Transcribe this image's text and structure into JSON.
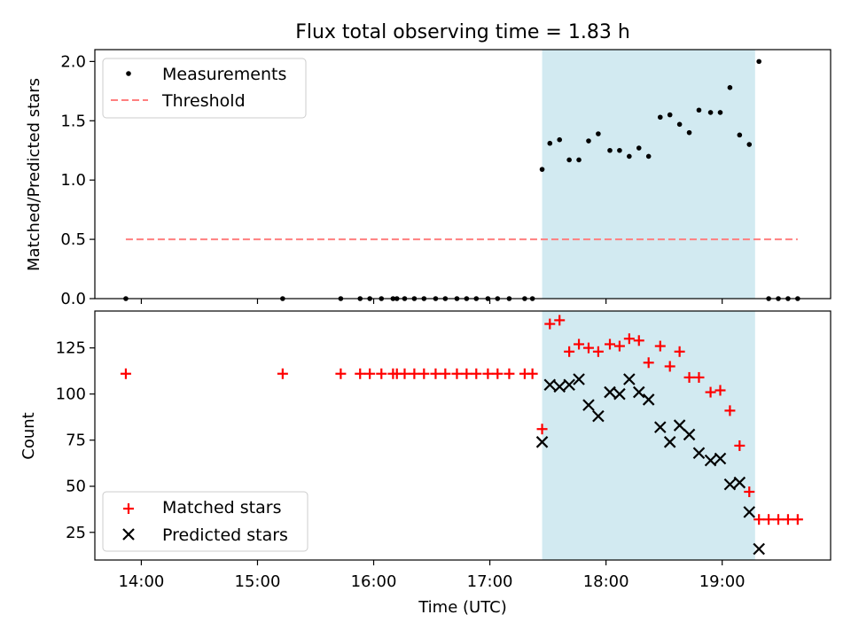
{
  "chart_data": {
    "type": "scatter",
    "title": "Flux total observing time = 1.83 h",
    "xlabel": "Time (UTC)",
    "x_ticks": [
      "14:00",
      "15:00",
      "16:00",
      "17:00",
      "18:00",
      "19:00"
    ],
    "shaded_interval": [
      "17:27",
      "19:17"
    ],
    "shade_color": "#add8e6",
    "panels": [
      {
        "ylabel": "Matched/Predicted stars",
        "ylim": [
          0,
          2.1
        ],
        "y_ticks": [
          "0.0",
          "0.5",
          "1.0",
          "1.5",
          "2.0"
        ],
        "legend": "top-left",
        "series": [
          {
            "name": "Measurements",
            "marker": "dot",
            "color": "#000000",
            "x": [
              "13:52",
              "15:13",
              "15:43",
              "15:53",
              "15:58",
              "16:04",
              "16:10",
              "16:12",
              "16:16",
              "16:21",
              "16:26",
              "16:32",
              "16:37",
              "16:43",
              "16:48",
              "16:53",
              "16:59",
              "17:04",
              "17:10",
              "17:18",
              "17:22",
              "17:27",
              "17:31",
              "17:36",
              "17:41",
              "17:46",
              "17:51",
              "17:56",
              "18:02",
              "18:07",
              "18:12",
              "18:17",
              "18:22",
              "18:28",
              "18:33",
              "18:38",
              "18:43",
              "18:48",
              "18:54",
              "18:59",
              "19:04",
              "19:09",
              "19:14",
              "19:19",
              "19:24",
              "19:29",
              "19:34",
              "19:39"
            ],
            "y": [
              0,
              0,
              0,
              0,
              0,
              0,
              0,
              0,
              0,
              0,
              0,
              0,
              0,
              0,
              0,
              0,
              0,
              0,
              0,
              0,
              0,
              1.09,
              1.31,
              1.34,
              1.17,
              1.17,
              1.33,
              1.39,
              1.25,
              1.25,
              1.2,
              1.27,
              1.2,
              1.53,
              1.55,
              1.47,
              1.4,
              1.59,
              1.57,
              1.57,
              1.78,
              1.38,
              1.3,
              2.0,
              0,
              0,
              0,
              0
            ]
          },
          {
            "name": "Threshold",
            "marker": "dashed-line",
            "color": "#ff7f7f",
            "x": [
              "13:52",
              "19:39"
            ],
            "y": [
              0.5,
              0.5
            ]
          }
        ]
      },
      {
        "ylabel": "Count",
        "ylim": [
          10,
          145
        ],
        "y_ticks": [
          "25",
          "50",
          "75",
          "100",
          "125"
        ],
        "legend": "bottom-left",
        "series": [
          {
            "name": "Matched stars",
            "marker": "plus",
            "color": "#ff0000",
            "x": [
              "13:52",
              "15:13",
              "15:43",
              "15:53",
              "15:58",
              "16:04",
              "16:10",
              "16:12",
              "16:16",
              "16:21",
              "16:26",
              "16:32",
              "16:37",
              "16:43",
              "16:48",
              "16:53",
              "16:59",
              "17:04",
              "17:10",
              "17:18",
              "17:22",
              "17:27",
              "17:31",
              "17:36",
              "17:41",
              "17:46",
              "17:51",
              "17:56",
              "18:02",
              "18:07",
              "18:12",
              "18:17",
              "18:22",
              "18:28",
              "18:33",
              "18:38",
              "18:43",
              "18:48",
              "18:54",
              "18:59",
              "19:04",
              "19:09",
              "19:14",
              "19:19",
              "19:24",
              "19:29",
              "19:34",
              "19:39"
            ],
            "y": [
              111,
              111,
              111,
              111,
              111,
              111,
              111,
              111,
              111,
              111,
              111,
              111,
              111,
              111,
              111,
              111,
              111,
              111,
              111,
              111,
              111,
              81,
              138,
              140,
              123,
              127,
              125,
              123,
              127,
              126,
              130,
              129,
              117,
              126,
              115,
              123,
              109,
              109,
              101,
              102,
              91,
              72,
              47,
              32,
              32,
              32,
              32,
              32
            ]
          },
          {
            "name": "Predicted stars",
            "marker": "x",
            "color": "#000000",
            "x": [
              "17:27",
              "17:31",
              "17:36",
              "17:41",
              "17:46",
              "17:51",
              "17:56",
              "18:02",
              "18:07",
              "18:12",
              "18:17",
              "18:22",
              "18:28",
              "18:33",
              "18:38",
              "18:43",
              "18:48",
              "18:54",
              "18:59",
              "19:04",
              "19:09",
              "19:14",
              "19:19"
            ],
            "y": [
              74,
              105,
              104,
              105,
              108,
              94,
              88,
              101,
              100,
              108,
              101,
              97,
              82,
              74,
              83,
              78,
              68,
              64,
              65,
              51,
              52,
              36,
              16
            ]
          }
        ]
      }
    ]
  }
}
